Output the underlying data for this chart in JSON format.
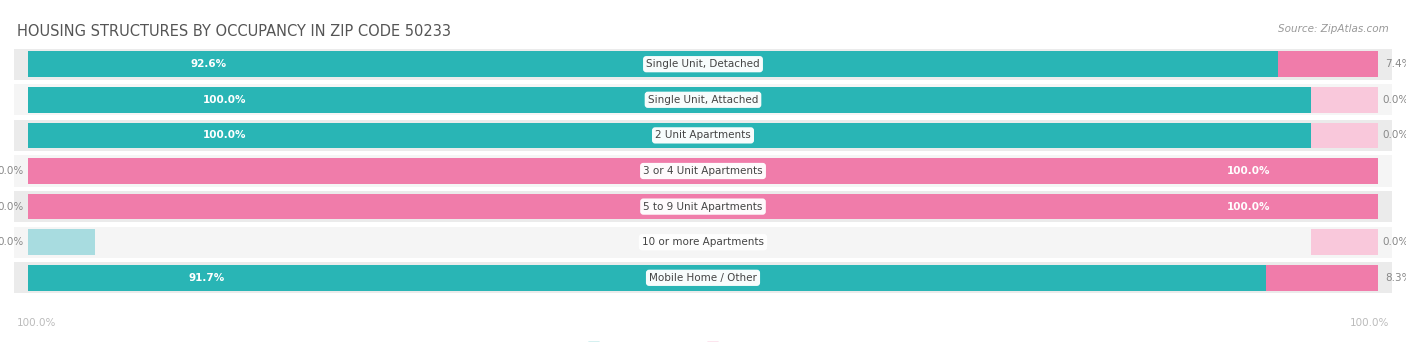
{
  "title": "HOUSING STRUCTURES BY OCCUPANCY IN ZIP CODE 50233",
  "source": "Source: ZipAtlas.com",
  "categories": [
    "Single Unit, Detached",
    "Single Unit, Attached",
    "2 Unit Apartments",
    "3 or 4 Unit Apartments",
    "5 to 9 Unit Apartments",
    "10 or more Apartments",
    "Mobile Home / Other"
  ],
  "owner_pct": [
    92.6,
    100.0,
    100.0,
    0.0,
    0.0,
    0.0,
    91.7
  ],
  "renter_pct": [
    7.4,
    0.0,
    0.0,
    100.0,
    100.0,
    0.0,
    8.3
  ],
  "owner_color": "#29b5b5",
  "renter_color": "#f07caa",
  "owner_stub_color": "#a8dce0",
  "renter_stub_color": "#f9c8db",
  "row_colors": [
    "#ebebeb",
    "#f5f5f5",
    "#ebebeb",
    "#f5f5f5",
    "#ebebeb",
    "#f5f5f5",
    "#ebebeb"
  ],
  "title_color": "#555555",
  "source_color": "#999999",
  "label_white": "#ffffff",
  "label_gray": "#888888",
  "axis_label_color": "#bbbbbb",
  "legend_text_color": "#666666",
  "figsize": [
    14.06,
    3.42
  ],
  "dpi": 100
}
